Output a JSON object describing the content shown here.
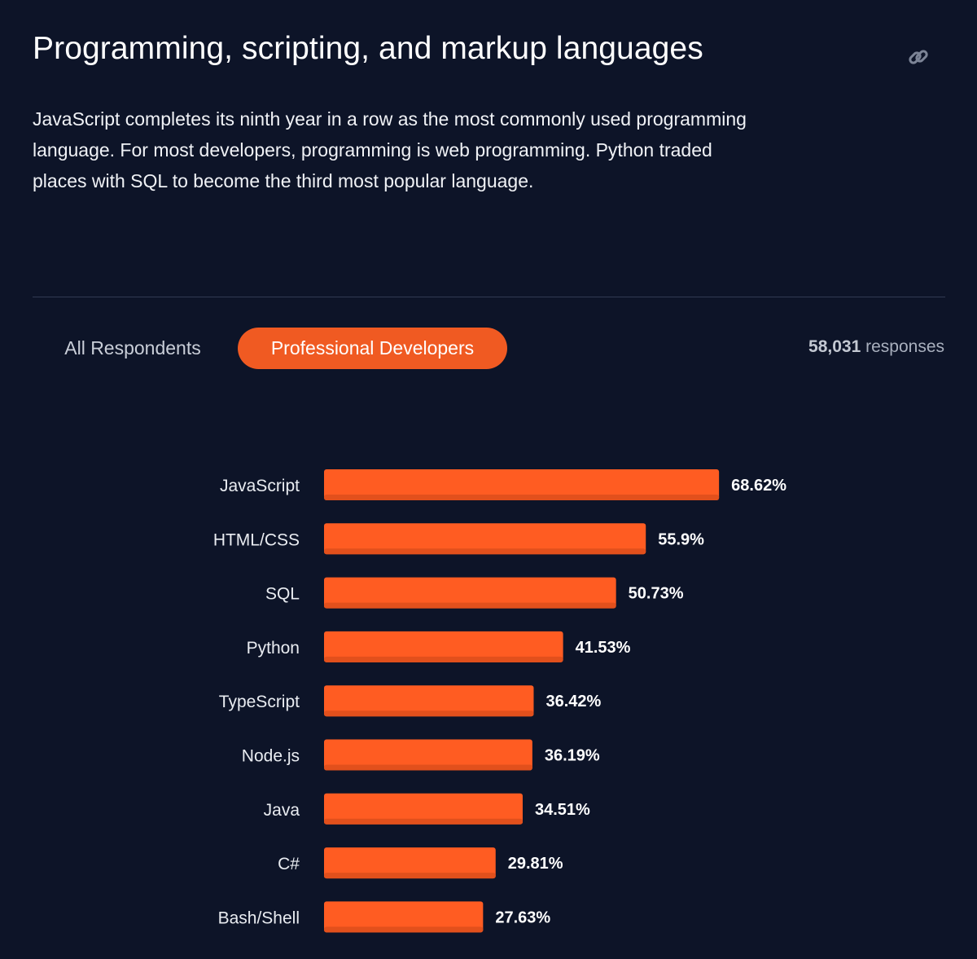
{
  "section": {
    "title": "Programming, scripting, and markup languages",
    "description": "JavaScript completes its ninth year in a row as the most commonly used programming language. For most developers, programming is web programming. Python traded places with SQL to become the third most popular language.",
    "link_icon": "link-icon"
  },
  "tabs": {
    "all_respondents": "All Respondents",
    "professional_developers": "Professional Developers",
    "active": "professional_developers"
  },
  "responses": {
    "count": "58,031",
    "label": "responses"
  },
  "colors": {
    "background": "#0d1428",
    "bar": "#ff5c22",
    "bar_shade": "#e2501c",
    "tab_active": "#f05a22",
    "value_text": "#ffffff",
    "label_text": "#e9ecf1"
  },
  "chart_data": {
    "type": "bar",
    "orientation": "horizontal",
    "categories": [
      "JavaScript",
      "HTML/CSS",
      "SQL",
      "Python",
      "TypeScript",
      "Node.js",
      "Java",
      "C#",
      "Bash/Shell"
    ],
    "values": [
      68.62,
      55.9,
      50.73,
      41.53,
      36.42,
      36.19,
      34.51,
      29.81,
      27.63
    ],
    "value_labels": [
      "68.62%",
      "55.9%",
      "50.73%",
      "41.53%",
      "36.42%",
      "36.19%",
      "34.51%",
      "29.81%",
      "27.63%"
    ],
    "unit": "%",
    "title": "",
    "xlabel": "",
    "ylabel": "",
    "grid": false,
    "legend": "none"
  }
}
